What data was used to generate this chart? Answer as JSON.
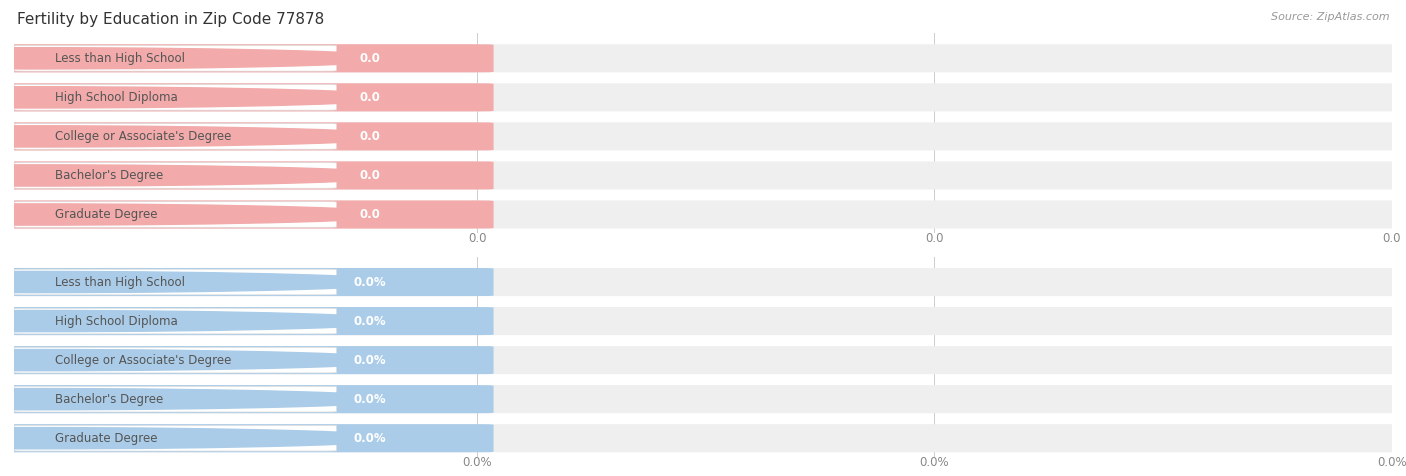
{
  "title": "Fertility by Education in Zip Code 77878",
  "source": "Source: ZipAtlas.com",
  "categories": [
    "Less than High School",
    "High School Diploma",
    "College or Associate's Degree",
    "Bachelor's Degree",
    "Graduate Degree"
  ],
  "top_values": [
    0.0,
    0.0,
    0.0,
    0.0,
    0.0
  ],
  "bottom_values": [
    0.0,
    0.0,
    0.0,
    0.0,
    0.0
  ],
  "top_color": "#F2AAAA",
  "bottom_color": "#AACCE8",
  "row_bg_color": "#EFEFEF",
  "label_box_color": "#FFFFFF",
  "label_text_color": "#555555",
  "value_text_color": "#FFFFFF",
  "grid_color": "#CCCCCC",
  "tick_color": "#888888",
  "title_color": "#333333",
  "source_color": "#999999",
  "bg_color": "#FFFFFF",
  "title_fontsize": 11,
  "source_fontsize": 8,
  "label_fontsize": 8.5,
  "value_fontsize": 8.5,
  "tick_fontsize": 8.5,
  "top_tick_labels": [
    "0.0",
    "0.0",
    "0.0"
  ],
  "bottom_tick_labels": [
    "0.0%",
    "0.0%",
    "0.0%"
  ]
}
